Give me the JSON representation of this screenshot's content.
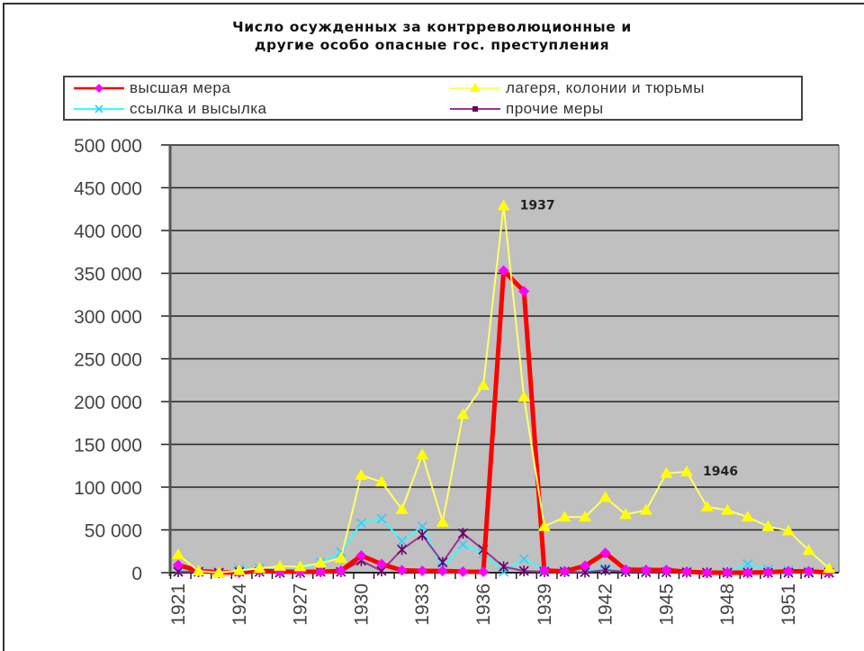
{
  "chart_data": {
    "type": "line",
    "title": "Число осужденных за контрреволюционные и другие особо опасные гос. преступления",
    "title_lines": [
      "Число осужденных за контрреволюционные и",
      "другие особо опасные гос. преступления"
    ],
    "xlabel": "",
    "ylabel": "",
    "ylim": [
      0,
      500000
    ],
    "y_ticks": [
      "500 000",
      "450 000",
      "400 000",
      "350 000",
      "300 000",
      "250 000",
      "200 000",
      "150 000",
      "100 000",
      "50 000",
      "0"
    ],
    "x_tick_labels": [
      "1921",
      "1924",
      "1927",
      "1930",
      "1933",
      "1936",
      "1939",
      "1942",
      "1945",
      "1948",
      "1951"
    ],
    "grid": true,
    "legend_position": "top",
    "x": [
      1921,
      1922,
      1923,
      1924,
      1925,
      1926,
      1927,
      1928,
      1929,
      1930,
      1931,
      1932,
      1933,
      1934,
      1935,
      1936,
      1937,
      1938,
      1939,
      1940,
      1941,
      1942,
      1943,
      1944,
      1945,
      1946,
      1947,
      1948,
      1949,
      1950,
      1951,
      1952,
      1953
    ],
    "series": [
      {
        "name": "высшая мера",
        "color": "#ff0000",
        "marker_color": "#ff00ff",
        "marker": "diamond",
        "values": [
          9000,
          2000,
          400,
          0,
          2400,
          1000,
          1000,
          900,
          2100,
          20000,
          10000,
          2700,
          2100,
          2000,
          1200,
          1100,
          353000,
          329000,
          2500,
          1600,
          8000,
          23000,
          3600,
          3100,
          3000,
          1000,
          0,
          0,
          0,
          500,
          1600,
          1600,
          200
        ]
      },
      {
        "name": "лагеря, колонии и тюрьмы",
        "color": "#ffff66",
        "marker_color": "#ffff00",
        "marker": "triangle",
        "values": [
          21000,
          2000,
          0,
          2500,
          5000,
          7500,
          7000,
          11000,
          17000,
          114000,
          106000,
          74000,
          138000,
          59000,
          185000,
          219000,
          429000,
          205000,
          54000,
          65000,
          65000,
          88000,
          68000,
          73000,
          116000,
          118000,
          77000,
          73000,
          65000,
          54000,
          49000,
          26000,
          5000
        ]
      },
      {
        "name": "ссылка и высылка",
        "color": "#33ffff",
        "marker_color": "#33ccff",
        "marker": "x",
        "values": [
          1800,
          1000,
          0,
          4000,
          5000,
          3000,
          4000,
          12000,
          24000,
          58000,
          63000,
          37000,
          54000,
          5000,
          33000,
          23000,
          1000,
          16000,
          3000,
          2000,
          1000,
          5000,
          1500,
          2000,
          1000,
          1000,
          0,
          1000,
          10000,
          4000,
          2500,
          1500,
          0
        ]
      },
      {
        "name": "прочие меры",
        "color": "#993399",
        "marker_color": "#660066",
        "marker": "star",
        "values": [
          1000,
          1000,
          0,
          1000,
          1000,
          0,
          0,
          1000,
          1000,
          14000,
          2000,
          27000,
          44000,
          12000,
          46000,
          27000,
          7000,
          2000,
          1000,
          1000,
          500,
          3000,
          1000,
          500,
          500,
          500,
          0,
          0,
          0,
          0,
          0,
          0,
          0
        ]
      }
    ],
    "annotations": [
      {
        "text": "1937",
        "x": 1937,
        "y": 429000
      },
      {
        "text": "1946",
        "x": 1946,
        "y": 118000
      }
    ]
  },
  "legend": {
    "items": [
      {
        "label": "высшая мера"
      },
      {
        "label": "лагеря, колонии и тюрьмы"
      },
      {
        "label": "ссылка и высылка"
      },
      {
        "label": "прочие меры"
      }
    ]
  }
}
